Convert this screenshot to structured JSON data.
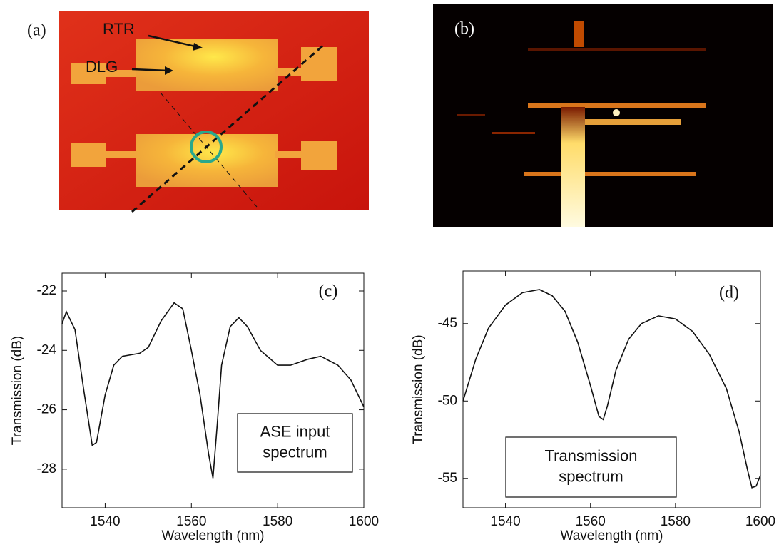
{
  "images": [
    {
      "panel_label": "(a)",
      "annotations": [
        "RTR",
        "DLG"
      ]
    },
    {
      "panel_label": "(b)"
    }
  ],
  "chart_data": [
    {
      "type": "line",
      "panel_label": "(c)",
      "text_box": [
        "ASE input",
        "spectrum"
      ],
      "xlabel": "Wavelength (nm)",
      "ylabel": "Transmission (dB)",
      "x": [
        1530,
        1531,
        1533,
        1535,
        1537,
        1538,
        1540,
        1542,
        1544,
        1548,
        1550,
        1553,
        1556,
        1558,
        1560,
        1562,
        1564,
        1565,
        1566,
        1567,
        1569,
        1571,
        1573,
        1576,
        1580,
        1583,
        1587,
        1590,
        1594,
        1597,
        1600
      ],
      "series": [
        {
          "color": "#111111",
          "values": [
            -23.1,
            -22.7,
            -23.3,
            -25.3,
            -27.2,
            -27.1,
            -25.5,
            -24.5,
            -24.2,
            -24.1,
            -23.9,
            -23.0,
            -22.4,
            -22.6,
            -24.0,
            -25.5,
            -27.5,
            -28.3,
            -26.5,
            -24.5,
            -23.2,
            -22.9,
            -23.2,
            -24.0,
            -24.5,
            -24.5,
            -24.3,
            -24.2,
            -24.5,
            -25.0,
            -25.9
          ]
        }
      ],
      "xlim": [
        1530,
        1600
      ],
      "ylim": [
        -29.3,
        -21.4
      ],
      "xticks": [
        1540,
        1560,
        1580,
        1600
      ],
      "yticks": [
        -22,
        -24,
        -26,
        -28
      ]
    },
    {
      "type": "line",
      "panel_label": "(d)",
      "text_box": [
        "Transmission",
        "spectrum"
      ],
      "xlabel": "Wavelength (nm)",
      "ylabel": "Transmission (dB)",
      "x": [
        1530,
        1533,
        1536,
        1540,
        1544,
        1548,
        1551,
        1554,
        1557,
        1560,
        1562,
        1563,
        1564,
        1566,
        1569,
        1572,
        1576,
        1580,
        1584,
        1588,
        1592,
        1595,
        1597,
        1598,
        1599,
        1600
      ],
      "series": [
        {
          "color": "#111111",
          "values": [
            -50.0,
            -47.3,
            -45.3,
            -43.8,
            -43.0,
            -42.8,
            -43.2,
            -44.2,
            -46.2,
            -49.0,
            -51.0,
            -51.2,
            -50.3,
            -48.0,
            -46.0,
            -45.0,
            -44.5,
            -44.7,
            -45.5,
            -47.0,
            -49.2,
            -52.0,
            -54.5,
            -55.6,
            -55.5,
            -54.8
          ]
        }
      ],
      "xlim": [
        1530,
        1600
      ],
      "ylim": [
        -56.9,
        -41.6
      ],
      "xticks": [
        1540,
        1560,
        1580,
        1600
      ],
      "yticks": [
        -45,
        -50,
        -55
      ]
    }
  ]
}
